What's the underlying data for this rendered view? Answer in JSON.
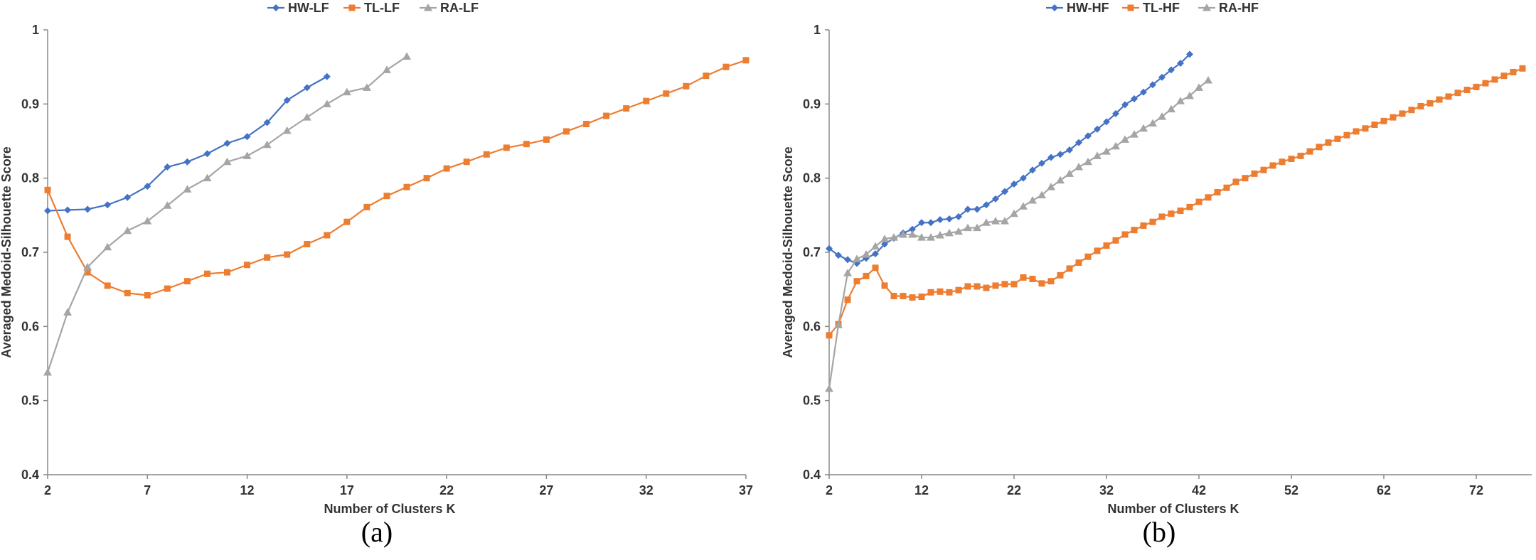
{
  "colors": {
    "blue": "#4472C4",
    "orange": "#ED7D31",
    "gray": "#A5A5A5",
    "axis": "#888888"
  },
  "chart_data": [
    {
      "id": "a",
      "type": "line",
      "caption": "(a)",
      "xlabel": "Number of Clusters K",
      "ylabel": "Averaged Medoid-Silhouette Score",
      "xlim": [
        2,
        37
      ],
      "ylim": [
        0.4,
        1
      ],
      "xticks": [
        "2",
        "7",
        "12",
        "17",
        "22",
        "27",
        "32",
        "37"
      ],
      "yticks": [
        "0.4",
        "0.5",
        "0.6",
        "0.7",
        "0.8",
        "0.9",
        "1"
      ],
      "series": [
        {
          "name": "HW-LF",
          "color": "#4472C4",
          "marker": "diamond",
          "x_start": 2,
          "values": [
            0.756,
            0.757,
            0.758,
            0.764,
            0.774,
            0.789,
            0.815,
            0.822,
            0.833,
            0.847,
            0.856,
            0.875,
            0.905,
            0.922,
            0.937
          ]
        },
        {
          "name": "TL-LF",
          "color": "#ED7D31",
          "marker": "square",
          "x_start": 2,
          "values": [
            0.784,
            0.721,
            0.673,
            0.655,
            0.645,
            0.642,
            0.651,
            0.661,
            0.671,
            0.673,
            0.683,
            0.693,
            0.697,
            0.711,
            0.723,
            0.741,
            0.761,
            0.776,
            0.788,
            0.8,
            0.813,
            0.822,
            0.832,
            0.841,
            0.846,
            0.852,
            0.863,
            0.873,
            0.884,
            0.894,
            0.904,
            0.914,
            0.924,
            0.938,
            0.95,
            0.959
          ]
        },
        {
          "name": "RA-LF",
          "color": "#A5A5A5",
          "marker": "triangle",
          "x_start": 2,
          "values": [
            0.538,
            0.619,
            0.68,
            0.707,
            0.729,
            0.742,
            0.763,
            0.785,
            0.8,
            0.822,
            0.83,
            0.845,
            0.864,
            0.882,
            0.9,
            0.916,
            0.922,
            0.946,
            0.964
          ]
        }
      ]
    },
    {
      "id": "b",
      "type": "line",
      "caption": "(b)",
      "xlabel": "Number of Clusters K",
      "ylabel": "Averaged Medoid-Silhouette Score",
      "xlim": [
        2,
        78
      ],
      "ylim": [
        0.4,
        1
      ],
      "xticks": [
        "2",
        "12",
        "22",
        "32",
        "42",
        "52",
        "62",
        "72"
      ],
      "yticks": [
        "0.4",
        "0.5",
        "0.6",
        "0.7",
        "0.8",
        "0.9",
        "1"
      ],
      "series": [
        {
          "name": "HW-HF",
          "color": "#4472C4",
          "marker": "diamond",
          "x_start": 2,
          "values": [
            0.705,
            0.696,
            0.69,
            0.685,
            0.692,
            0.698,
            0.711,
            0.719,
            0.726,
            0.731,
            0.74,
            0.74,
            0.744,
            0.745,
            0.748,
            0.758,
            0.758,
            0.764,
            0.772,
            0.782,
            0.792,
            0.8,
            0.811,
            0.82,
            0.828,
            0.832,
            0.838,
            0.848,
            0.857,
            0.866,
            0.876,
            0.887,
            0.899,
            0.907,
            0.916,
            0.926,
            0.936,
            0.946,
            0.955,
            0.967
          ]
        },
        {
          "name": "TL-HF",
          "color": "#ED7D31",
          "marker": "square",
          "x_start": 2,
          "values": [
            0.588,
            0.603,
            0.636,
            0.661,
            0.668,
            0.679,
            0.655,
            0.641,
            0.641,
            0.639,
            0.64,
            0.646,
            0.647,
            0.646,
            0.649,
            0.654,
            0.654,
            0.652,
            0.655,
            0.657,
            0.657,
            0.666,
            0.664,
            0.658,
            0.661,
            0.669,
            0.678,
            0.686,
            0.694,
            0.702,
            0.709,
            0.716,
            0.724,
            0.73,
            0.736,
            0.741,
            0.748,
            0.752,
            0.756,
            0.761,
            0.768,
            0.774,
            0.781,
            0.787,
            0.795,
            0.8,
            0.806,
            0.811,
            0.817,
            0.822,
            0.826,
            0.83,
            0.836,
            0.842,
            0.848,
            0.853,
            0.858,
            0.863,
            0.867,
            0.872,
            0.877,
            0.882,
            0.887,
            0.892,
            0.897,
            0.901,
            0.906,
            0.91,
            0.915,
            0.919,
            0.923,
            0.928,
            0.933,
            0.938,
            0.943,
            0.948
          ]
        },
        {
          "name": "RA-HF",
          "color": "#A5A5A5",
          "marker": "triangle",
          "x_start": 2,
          "values": [
            0.516,
            0.602,
            0.672,
            0.691,
            0.697,
            0.708,
            0.718,
            0.72,
            0.724,
            0.724,
            0.72,
            0.72,
            0.723,
            0.726,
            0.728,
            0.733,
            0.733,
            0.74,
            0.742,
            0.742,
            0.752,
            0.762,
            0.77,
            0.777,
            0.788,
            0.797,
            0.806,
            0.815,
            0.822,
            0.83,
            0.836,
            0.843,
            0.852,
            0.859,
            0.867,
            0.874,
            0.883,
            0.893,
            0.904,
            0.911,
            0.922,
            0.932
          ]
        }
      ]
    }
  ]
}
